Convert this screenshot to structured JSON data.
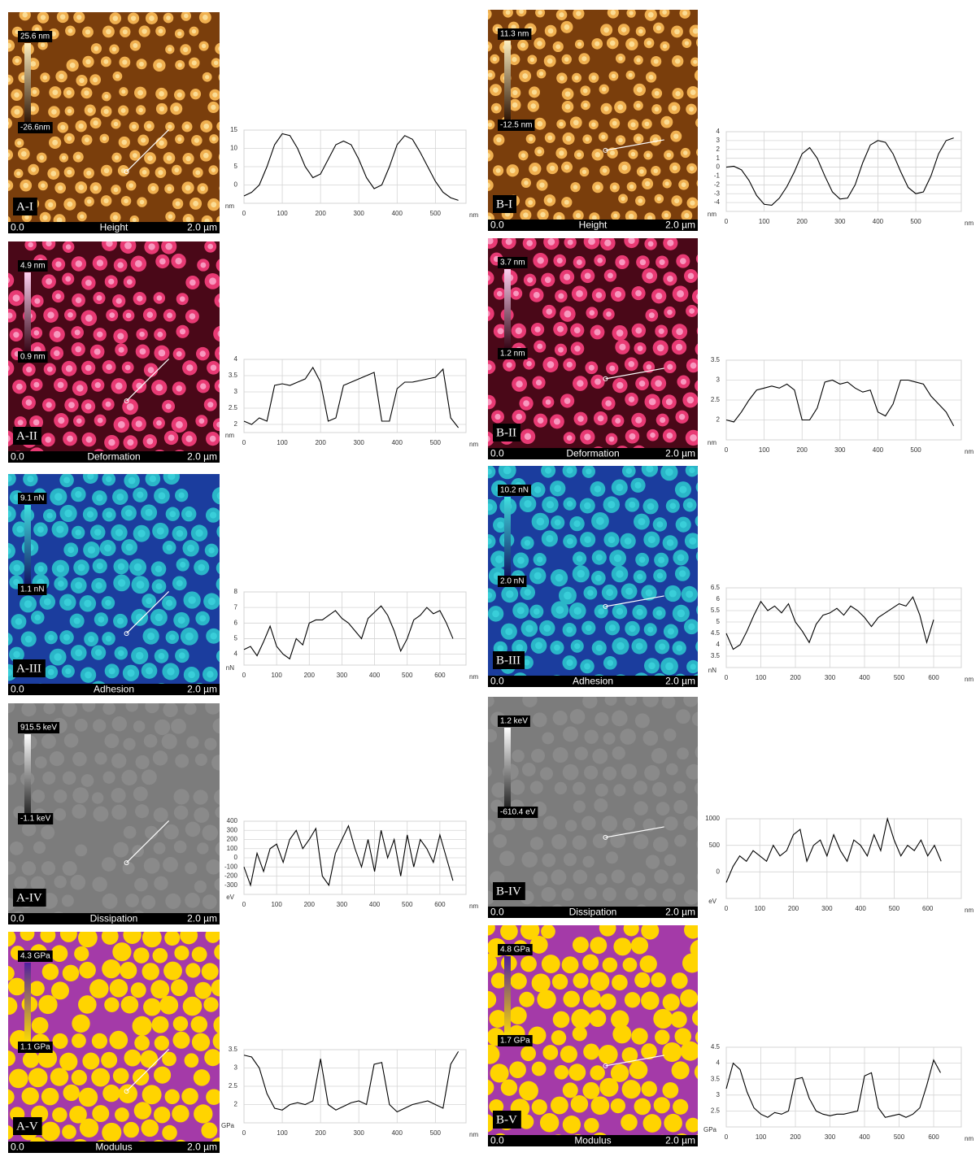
{
  "images": [
    {
      "label": "A-I",
      "max": "25.6 nm",
      "min": "-26.6nm",
      "origin": "0.0",
      "mode": "Height",
      "scale": "2.0 µm"
    },
    {
      "label": "A-II",
      "max": "4.9 nm",
      "min": "0.9 nm",
      "origin": "0.0",
      "mode": "Deformation",
      "scale": "2.0 µm"
    },
    {
      "label": "A-III",
      "max": "9.1 nN",
      "min": "1.1 nN",
      "origin": "0.0",
      "mode": "Adhesion",
      "scale": "2.0 µm"
    },
    {
      "label": "A-IV",
      "max": "915.5 keV",
      "min": "-1.1 keV",
      "origin": "0.0",
      "mode": "Dissipation",
      "scale": "2.0 µm"
    },
    {
      "label": "A-V",
      "max": "4.3 GPa",
      "min": "1.1 GPa",
      "origin": "0.0",
      "mode": "Modulus",
      "scale": "2.0 µm"
    },
    {
      "label": "B-I",
      "max": "11.3 nm",
      "min": "-12.5 nm",
      "origin": "0.0",
      "mode": "Height",
      "scale": "2.0 µm"
    },
    {
      "label": "B-II",
      "max": "3.7 nm",
      "min": "1.2 nm",
      "origin": "0.0",
      "mode": "Deformation",
      "scale": "2.0 µm"
    },
    {
      "label": "B-III",
      "max": "10.2 nN",
      "min": "2.0 nN",
      "origin": "0.0",
      "mode": "Adhesion",
      "scale": "2.0 µm"
    },
    {
      "label": "B-IV",
      "max": "1.2 keV",
      "min": "-610.4 eV",
      "origin": "0.0",
      "mode": "Dissipation",
      "scale": "2.0 µm"
    },
    {
      "label": "B-V",
      "max": "4.8 GPa",
      "min": "1.7 GPa",
      "origin": "0.0",
      "mode": "Modulus",
      "scale": "2.0 µm"
    }
  ],
  "chart_data": [
    {
      "type": "line",
      "color": "#000000",
      "grid": true,
      "ylabel": "nm",
      "xlabel": "nm",
      "xlim": [
        0,
        580
      ],
      "ylim": [
        -5,
        15
      ],
      "xticks": [
        0,
        100,
        200,
        300,
        400,
        500
      ],
      "yticks": [
        0,
        5,
        10,
        15
      ],
      "x": [
        0,
        20,
        40,
        60,
        80,
        100,
        120,
        140,
        160,
        180,
        200,
        220,
        240,
        260,
        280,
        300,
        320,
        340,
        360,
        380,
        400,
        420,
        440,
        460,
        480,
        500,
        520,
        540,
        560
      ],
      "values": [
        -3,
        -2,
        0,
        5,
        11,
        14,
        13.5,
        10,
        5,
        2,
        3,
        7,
        11,
        12,
        11,
        7,
        2,
        -1,
        0,
        5,
        11,
        13.5,
        12.5,
        9,
        5,
        1,
        -2,
        -3.5,
        -4.2
      ]
    },
    {
      "type": "line",
      "color": "#000000",
      "grid": true,
      "ylabel": "nm",
      "xlabel": "nm",
      "xlim": [
        0,
        580
      ],
      "ylim": [
        1.75,
        4
      ],
      "xticks": [
        0,
        100,
        200,
        300,
        400,
        500
      ],
      "yticks": [
        2,
        2.5,
        3,
        3.5,
        4
      ],
      "x": [
        0,
        20,
        40,
        60,
        80,
        100,
        120,
        140,
        160,
        180,
        200,
        220,
        240,
        260,
        280,
        300,
        320,
        340,
        360,
        380,
        400,
        420,
        440,
        460,
        480,
        500,
        520,
        540,
        560
      ],
      "values": [
        2.1,
        2.0,
        2.2,
        2.1,
        3.2,
        3.25,
        3.2,
        3.3,
        3.4,
        3.75,
        3.3,
        2.1,
        2.2,
        3.2,
        3.3,
        3.4,
        3.5,
        3.6,
        2.1,
        2.1,
        3.1,
        3.3,
        3.3,
        3.35,
        3.4,
        3.45,
        3.7,
        2.2,
        1.9
      ]
    },
    {
      "type": "line",
      "color": "#000000",
      "grid": true,
      "ylabel": "nN",
      "xlabel": "nm",
      "xlim": [
        0,
        680
      ],
      "ylim": [
        3.3,
        8
      ],
      "xticks": [
        0,
        100,
        200,
        300,
        400,
        500,
        600
      ],
      "yticks": [
        4,
        5,
        6,
        7,
        8
      ],
      "x": [
        0,
        20,
        40,
        60,
        80,
        100,
        120,
        140,
        160,
        180,
        200,
        220,
        240,
        260,
        280,
        300,
        320,
        340,
        360,
        380,
        400,
        420,
        440,
        460,
        480,
        500,
        520,
        540,
        560,
        580,
        600,
        620,
        640
      ],
      "values": [
        4.3,
        4.5,
        3.9,
        4.8,
        5.8,
        4.5,
        4.0,
        3.7,
        5.0,
        4.6,
        6.0,
        6.2,
        6.2,
        6.5,
        6.8,
        6.3,
        6.0,
        5.5,
        5.0,
        6.3,
        6.7,
        7.1,
        6.5,
        5.5,
        4.2,
        5.0,
        6.2,
        6.5,
        7.0,
        6.6,
        6.8,
        6.0,
        5.0
      ]
    },
    {
      "type": "line",
      "color": "#000000",
      "grid": true,
      "ylabel": "eV",
      "xlabel": "nm",
      "xlim": [
        0,
        680
      ],
      "ylim": [
        -400,
        400
      ],
      "xticks": [
        0,
        100,
        200,
        300,
        400,
        500,
        600
      ],
      "yticks": [
        -300,
        -200,
        -100,
        0,
        100,
        200,
        300,
        400
      ],
      "x": [
        0,
        20,
        40,
        60,
        80,
        100,
        120,
        140,
        160,
        180,
        200,
        220,
        240,
        260,
        280,
        300,
        320,
        340,
        360,
        380,
        400,
        420,
        440,
        460,
        480,
        500,
        520,
        540,
        560,
        580,
        600,
        620,
        640
      ],
      "values": [
        -100,
        -300,
        50,
        -150,
        100,
        150,
        -50,
        200,
        300,
        100,
        200,
        320,
        -200,
        -300,
        50,
        200,
        350,
        100,
        -100,
        200,
        -150,
        300,
        0,
        200,
        -200,
        250,
        -100,
        200,
        100,
        -50,
        250,
        0,
        -250
      ]
    },
    {
      "type": "line",
      "color": "#000000",
      "grid": true,
      "ylabel": "GPa",
      "xlabel": "nm",
      "xlim": [
        0,
        580
      ],
      "ylim": [
        1.5,
        3.5
      ],
      "xticks": [
        0,
        100,
        200,
        300,
        400,
        500
      ],
      "yticks": [
        2,
        2.5,
        3,
        3.5
      ],
      "x": [
        0,
        20,
        40,
        60,
        80,
        100,
        120,
        140,
        160,
        180,
        200,
        220,
        240,
        260,
        280,
        300,
        320,
        340,
        360,
        380,
        400,
        420,
        440,
        460,
        480,
        500,
        520,
        540,
        560
      ],
      "values": [
        3.35,
        3.3,
        3.0,
        2.3,
        1.9,
        1.85,
        2.0,
        2.05,
        2.0,
        2.1,
        3.25,
        2.0,
        1.85,
        1.95,
        2.05,
        2.1,
        2.0,
        3.1,
        3.15,
        2.0,
        1.8,
        1.9,
        2.0,
        2.05,
        2.1,
        2.0,
        1.9,
        3.1,
        3.45
      ]
    },
    {
      "type": "line",
      "color": "#000000",
      "grid": true,
      "ylabel": "nm",
      "xlabel": "nm",
      "xlim": [
        0,
        620
      ],
      "ylim": [
        -5,
        4
      ],
      "xticks": [
        0,
        100,
        200,
        300,
        400,
        500
      ],
      "yticks": [
        -4,
        -3,
        -2,
        -1,
        0,
        1,
        2,
        3,
        4
      ],
      "x": [
        0,
        20,
        40,
        60,
        80,
        100,
        120,
        140,
        160,
        180,
        200,
        220,
        240,
        260,
        280,
        300,
        320,
        340,
        360,
        380,
        400,
        420,
        440,
        460,
        480,
        500,
        520,
        540,
        560,
        580,
        600
      ],
      "values": [
        0,
        0.1,
        -0.3,
        -1.5,
        -3.2,
        -4.2,
        -4.3,
        -3.5,
        -2.2,
        -0.5,
        1.5,
        2.2,
        1.0,
        -1.0,
        -2.8,
        -3.6,
        -3.5,
        -2.0,
        0.5,
        2.5,
        3.0,
        2.8,
        1.5,
        -0.5,
        -2.3,
        -3.0,
        -2.8,
        -1.0,
        1.5,
        3.0,
        3.3
      ]
    },
    {
      "type": "line",
      "color": "#000000",
      "grid": true,
      "ylabel": "nm",
      "xlabel": "nm",
      "xlim": [
        0,
        620
      ],
      "ylim": [
        1.5,
        3.5
      ],
      "xticks": [
        0,
        100,
        200,
        300,
        400,
        500
      ],
      "yticks": [
        2,
        2.5,
        3,
        3.5
      ],
      "x": [
        0,
        20,
        40,
        60,
        80,
        100,
        120,
        140,
        160,
        180,
        200,
        220,
        240,
        260,
        280,
        300,
        320,
        340,
        360,
        380,
        400,
        420,
        440,
        460,
        480,
        500,
        520,
        540,
        560,
        580,
        600
      ],
      "values": [
        2.0,
        1.95,
        2.2,
        2.5,
        2.75,
        2.8,
        2.85,
        2.8,
        2.9,
        2.75,
        2.0,
        2.0,
        2.3,
        2.95,
        3.0,
        2.9,
        2.95,
        2.8,
        2.7,
        2.75,
        2.2,
        2.1,
        2.4,
        3.0,
        3.0,
        2.95,
        2.9,
        2.6,
        2.4,
        2.2,
        1.85
      ]
    },
    {
      "type": "line",
      "color": "#000000",
      "grid": true,
      "ylabel": "nN",
      "xlabel": "nm",
      "xlim": [
        0,
        680
      ],
      "ylim": [
        3,
        6.5
      ],
      "xticks": [
        0,
        100,
        200,
        300,
        400,
        500,
        600
      ],
      "yticks": [
        3.5,
        4,
        4.5,
        5,
        5.5,
        6,
        6.5
      ],
      "x": [
        0,
        20,
        40,
        60,
        80,
        100,
        120,
        140,
        160,
        180,
        200,
        220,
        240,
        260,
        280,
        300,
        320,
        340,
        360,
        380,
        400,
        420,
        440,
        460,
        480,
        500,
        520,
        540,
        560,
        580,
        600
      ],
      "values": [
        4.5,
        3.8,
        4.0,
        4.6,
        5.3,
        5.9,
        5.5,
        5.7,
        5.4,
        5.8,
        5.0,
        4.6,
        4.1,
        4.9,
        5.3,
        5.4,
        5.6,
        5.3,
        5.7,
        5.5,
        5.2,
        4.8,
        5.2,
        5.4,
        5.6,
        5.8,
        5.7,
        6.1,
        5.3,
        4.1,
        5.1
      ]
    },
    {
      "type": "line",
      "color": "#000000",
      "grid": true,
      "ylabel": "eV",
      "xlabel": "nm",
      "xlim": [
        0,
        700
      ],
      "ylim": [
        -500,
        1000
      ],
      "xticks": [
        0,
        100,
        200,
        300,
        400,
        500,
        600
      ],
      "yticks": [
        0,
        500,
        1000
      ],
      "x": [
        0,
        20,
        40,
        60,
        80,
        100,
        120,
        140,
        160,
        180,
        200,
        220,
        240,
        260,
        280,
        300,
        320,
        340,
        360,
        380,
        400,
        420,
        440,
        460,
        480,
        500,
        520,
        540,
        560,
        580,
        600,
        620,
        640
      ],
      "values": [
        -200,
        100,
        300,
        200,
        400,
        300,
        200,
        500,
        300,
        400,
        700,
        800,
        200,
        500,
        600,
        300,
        700,
        400,
        200,
        600,
        500,
        300,
        700,
        400,
        1000,
        600,
        300,
        500,
        400,
        600,
        300,
        500,
        200
      ]
    },
    {
      "type": "line",
      "color": "#000000",
      "grid": true,
      "ylabel": "GPa",
      "xlabel": "nm",
      "xlim": [
        0,
        680
      ],
      "ylim": [
        2,
        4.5
      ],
      "xticks": [
        0,
        100,
        200,
        300,
        400,
        500,
        600
      ],
      "yticks": [
        2.5,
        3,
        3.5,
        4,
        4.5
      ],
      "x": [
        0,
        20,
        40,
        60,
        80,
        100,
        120,
        140,
        160,
        180,
        200,
        220,
        240,
        260,
        280,
        300,
        320,
        340,
        360,
        380,
        400,
        420,
        440,
        460,
        480,
        500,
        520,
        540,
        560,
        580,
        600,
        620
      ],
      "values": [
        3.2,
        4.0,
        3.8,
        3.1,
        2.6,
        2.4,
        2.3,
        2.45,
        2.4,
        2.5,
        3.5,
        3.55,
        2.9,
        2.5,
        2.4,
        2.35,
        2.4,
        2.4,
        2.45,
        2.5,
        3.6,
        3.7,
        2.6,
        2.3,
        2.35,
        2.4,
        2.3,
        2.4,
        2.6,
        3.3,
        4.1,
        3.7
      ]
    }
  ]
}
